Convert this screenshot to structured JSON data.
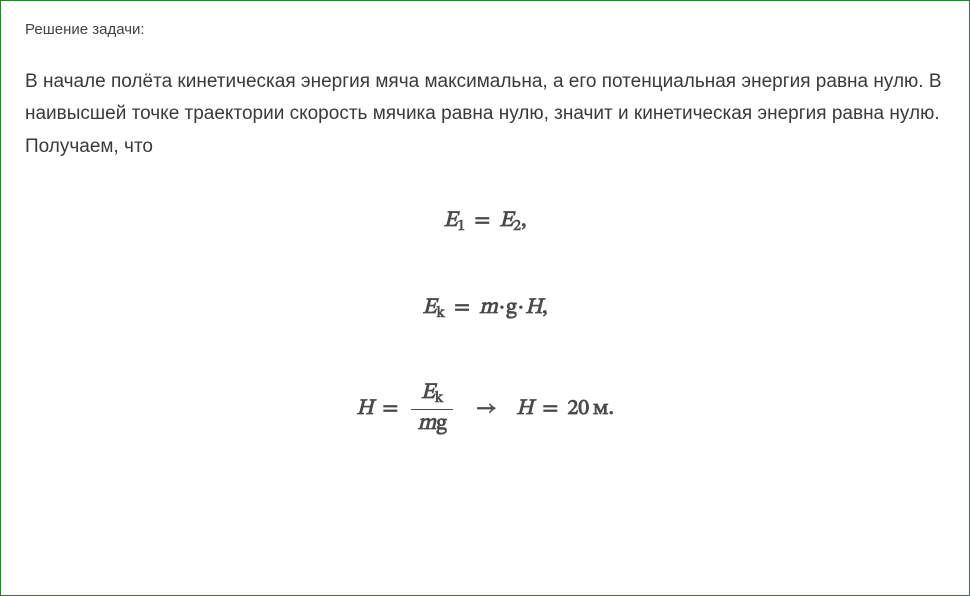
{
  "heading": "Решение задачи:",
  "paragraph": "В начале полёта кинетическая энергия мяча максимальна, а его потенциальная энергия равна нулю. В наивысшей точке траектории скорость мячика равна нулю, значит и кинетическая энергия равна нулю. Получаем, что",
  "formulas": {
    "line1": {
      "E1_base": "E",
      "E1_sub": "1",
      "eq": "=",
      "E2_base": "E",
      "E2_sub": "2",
      "end": ","
    },
    "line2": {
      "Ek_base": "E",
      "Ek_sub": "k",
      "eq": "=",
      "m": "m",
      "dot": "·",
      "g": "g",
      "H": "H",
      "end": ","
    },
    "line3": {
      "H": "H",
      "eq": "=",
      "frac_num_base": "E",
      "frac_num_sub": "k",
      "frac_den_m": "m",
      "frac_den_g": "g",
      "arrow": "→",
      "H2": "H",
      "eq2": "=",
      "value": "20",
      "unit": "м",
      "end": "."
    }
  },
  "styling": {
    "border_color": "#2e7d32",
    "background_color": "#ffffff",
    "heading_color": "#424242",
    "heading_fontsize": 15,
    "body_color": "#3a3a3a",
    "body_fontsize": 19,
    "body_lineheight": 1.7,
    "formula_color": "#4a4a4a",
    "formula_fontsize": 22,
    "formula_weight": "bold",
    "formula_style": "italic",
    "formula_spacing": 58,
    "container_width": 970,
    "container_height": 596,
    "container_padding": "20px 24px"
  }
}
